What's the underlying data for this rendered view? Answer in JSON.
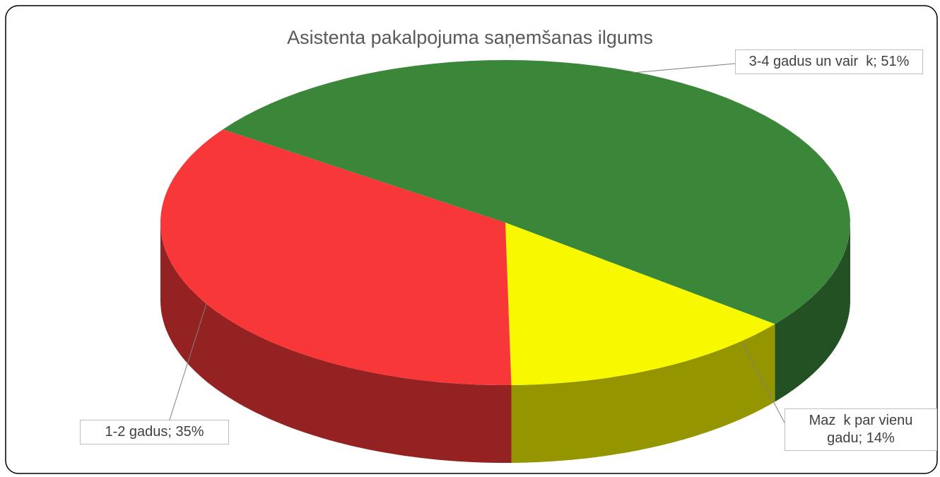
{
  "chart_data": {
    "type": "pie3d",
    "title": "Asistenta pakalpojuma saņemšanas ilgums",
    "categories": [
      "3-4 gadus un vair  k",
      "Maz  k par vienu gadu",
      "1-2 gadus"
    ],
    "values": [
      51,
      14,
      35
    ],
    "value_labels": [
      "51%",
      "14%",
      "35%"
    ],
    "label_separator": "; ",
    "colors": [
      "#3a873a",
      "#f8f800",
      "#f83838"
    ]
  }
}
